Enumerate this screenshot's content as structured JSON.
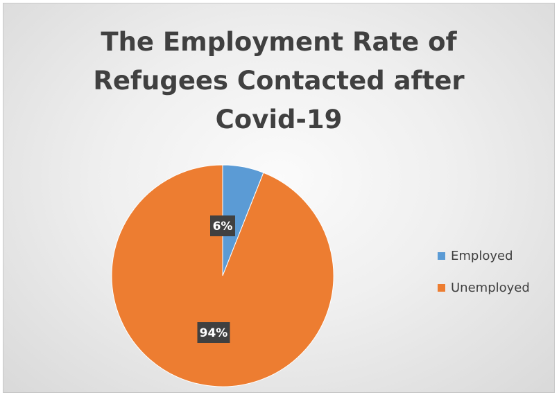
{
  "chart_data": {
    "type": "pie",
    "title_lines": [
      "The Employment Rate of",
      "Refugees Contacted after",
      "Covid-19"
    ],
    "categories": [
      "Employed",
      "Unemployed"
    ],
    "values": [
      6,
      94
    ],
    "data_labels": [
      "6%",
      "94%"
    ],
    "colors": [
      "#5b9bd5",
      "#ed7d31"
    ],
    "legend_position": "right"
  }
}
